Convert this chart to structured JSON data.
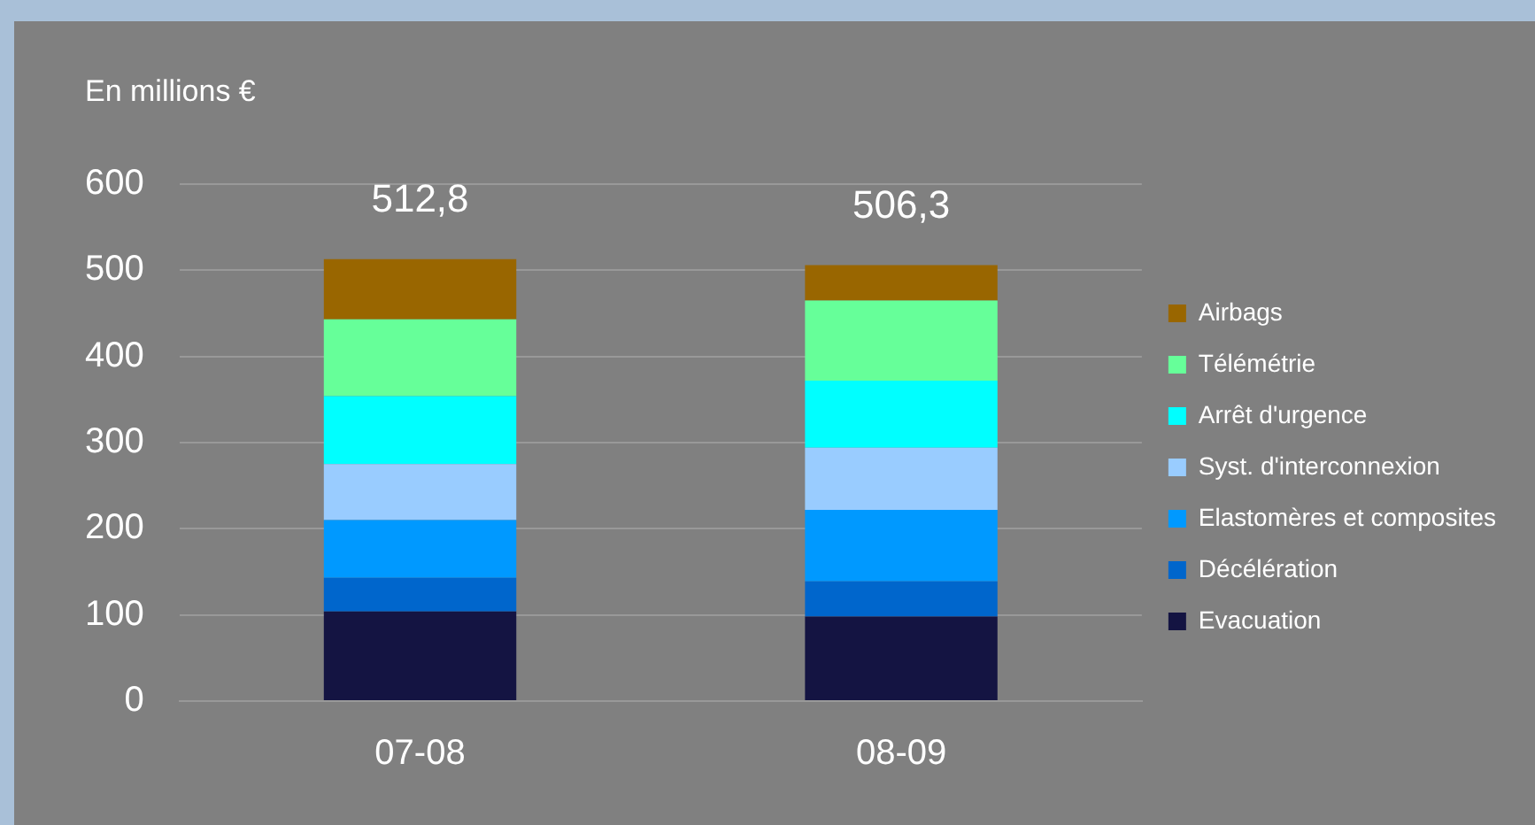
{
  "chart_data": {
    "type": "bar",
    "stacked": true,
    "ylabel": "En millions €",
    "categories": [
      "07-08",
      "08-09"
    ],
    "series": [
      {
        "name": "Evacuation",
        "color": "#141442",
        "values": [
          104,
          98
        ]
      },
      {
        "name": "Décélération",
        "color": "#0066cc",
        "values": [
          39,
          41
        ]
      },
      {
        "name": "Elastomères et composites",
        "color": "#0099ff",
        "values": [
          67,
          83
        ]
      },
      {
        "name": "Syst. d'interconnexion",
        "color": "#99ccff",
        "values": [
          65,
          72
        ]
      },
      {
        "name": "Arrêt d'urgence",
        "color": "#00ffff",
        "values": [
          79,
          78
        ]
      },
      {
        "name": "Télémétrie",
        "color": "#66ff99",
        "values": [
          89,
          93
        ]
      },
      {
        "name": "Airbags",
        "color": "#996600",
        "values": [
          70,
          41
        ]
      }
    ],
    "totals": [
      "512,8",
      "506,3"
    ],
    "ylim": [
      0,
      600
    ],
    "yticks": [
      0,
      100,
      200,
      300,
      400,
      500,
      600
    ],
    "grid": "y",
    "legend": "right"
  }
}
